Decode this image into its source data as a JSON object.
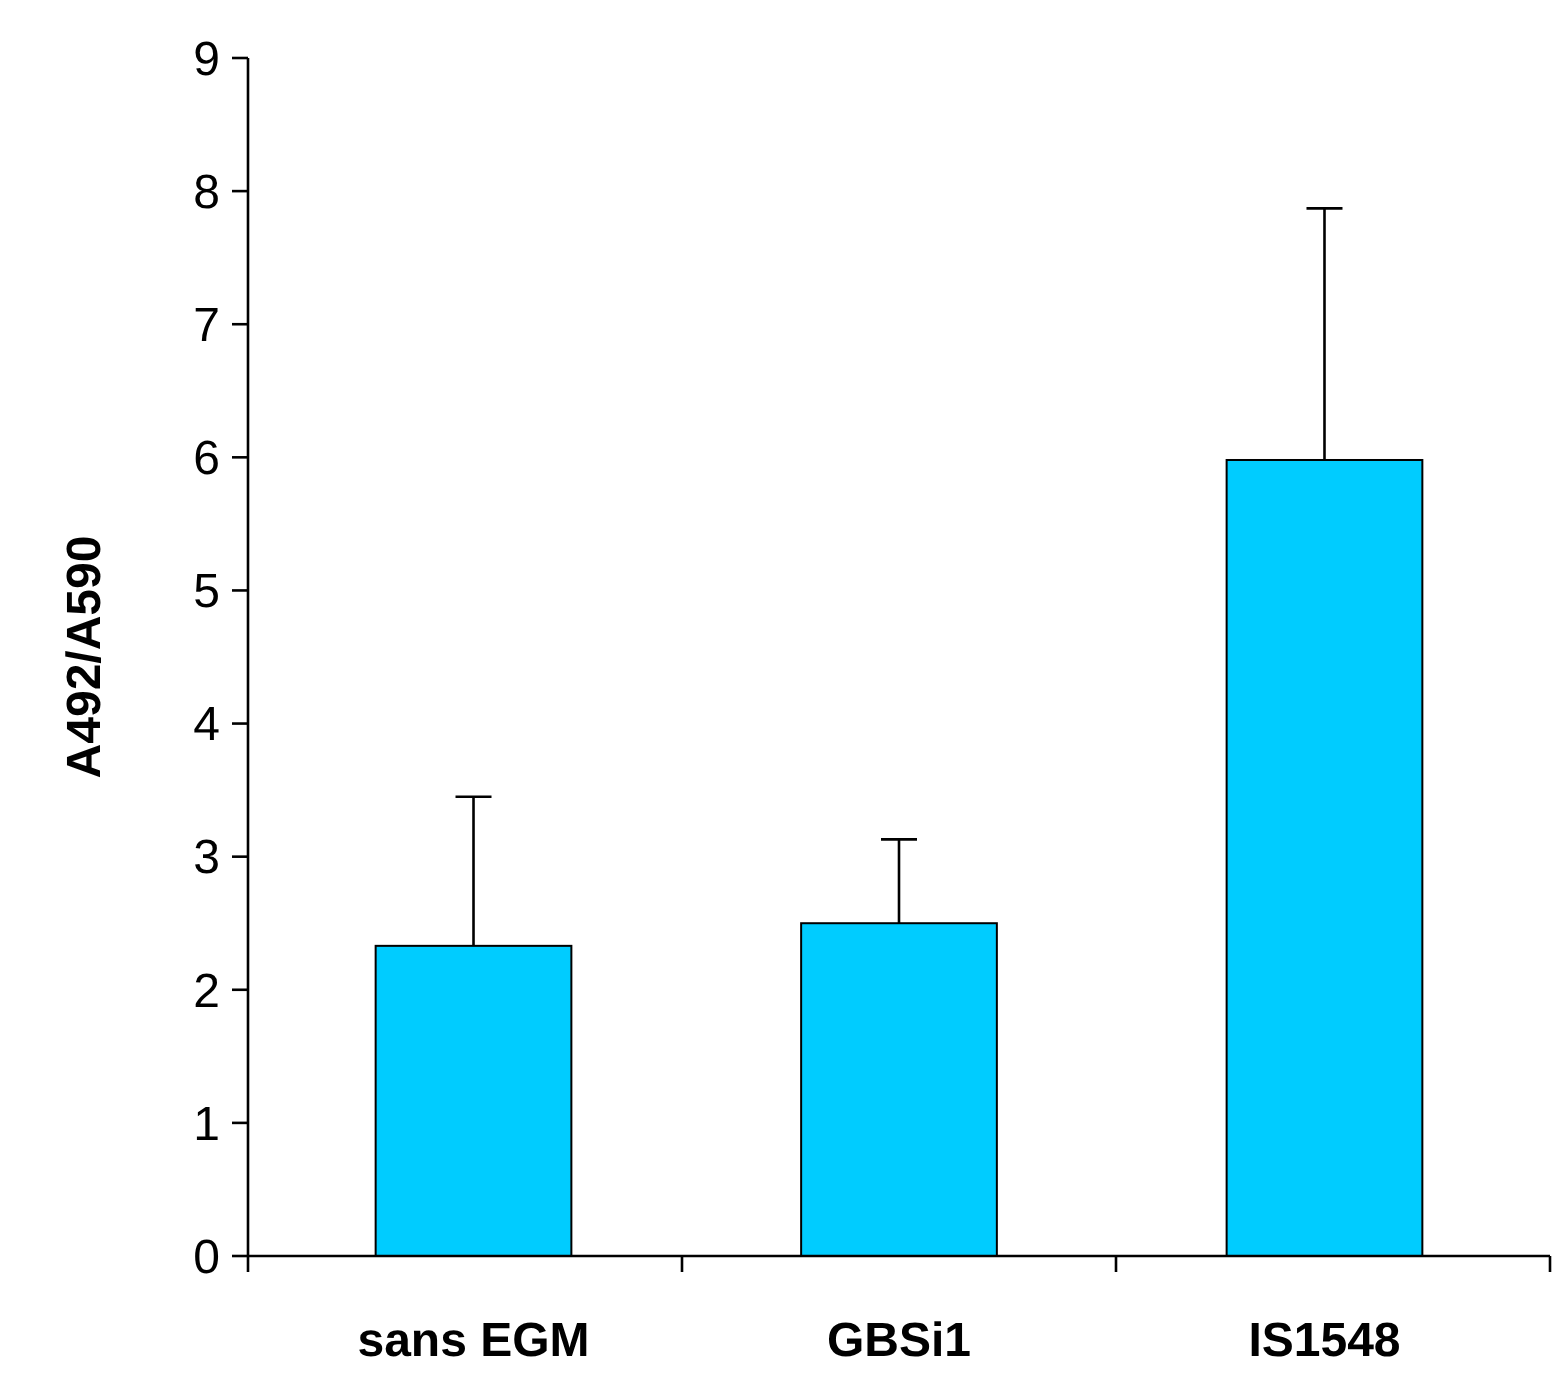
{
  "chart_data": {
    "type": "bar",
    "ylabel": "A492/A590",
    "categories": [
      "sans EGM",
      "GBSi1",
      "IS1548"
    ],
    "values": [
      2.33,
      2.5,
      5.98
    ],
    "errors": [
      [
        2.33,
        3.45
      ],
      [
        2.5,
        3.13
      ],
      [
        5.98,
        7.87
      ]
    ],
    "color": "#00ccff",
    "ylim": [
      0,
      9
    ],
    "yticks": [
      0,
      1,
      2,
      3,
      4,
      5,
      6,
      7,
      8,
      9
    ],
    "grid": false
  }
}
